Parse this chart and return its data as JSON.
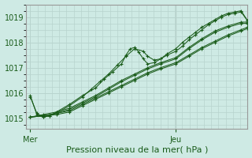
{
  "title": "Pression niveau de la mer( hPa )",
  "xlabel_ticks": [
    "Mer",
    "Jeu"
  ],
  "xlabel_tick_positions": [
    0.0,
    0.67
  ],
  "ylim": [
    1014.6,
    1019.5
  ],
  "yticks": [
    1015,
    1016,
    1017,
    1018,
    1019
  ],
  "xlim": [
    -0.02,
    1.0
  ],
  "bg_color": "#ceeae4",
  "grid_color": "#b8d4ce",
  "line_color": "#1a5c1a",
  "marker": "+",
  "vline_x": 0.67,
  "vline_color": "#888888",
  "series": [
    [
      0.0,
      1015.05,
      0.06,
      1015.1,
      0.12,
      1015.15,
      0.18,
      1015.25,
      0.24,
      1015.5,
      0.3,
      1015.75,
      0.36,
      1016.0,
      0.42,
      1016.25,
      0.48,
      1016.5,
      0.54,
      1016.75,
      0.6,
      1016.95,
      0.67,
      1017.15,
      0.73,
      1017.45,
      0.79,
      1017.75,
      0.85,
      1018.0,
      0.91,
      1018.25,
      0.97,
      1018.45,
      1.0,
      1018.55
    ],
    [
      0.0,
      1015.05,
      0.06,
      1015.1,
      0.12,
      1015.2,
      0.18,
      1015.3,
      0.24,
      1015.55,
      0.3,
      1015.8,
      0.36,
      1016.05,
      0.42,
      1016.3,
      0.48,
      1016.55,
      0.54,
      1016.8,
      0.6,
      1017.0,
      0.67,
      1017.2,
      0.73,
      1017.5,
      0.79,
      1017.8,
      0.85,
      1018.05,
      0.91,
      1018.3,
      0.97,
      1018.5,
      1.0,
      1018.6
    ],
    [
      0.0,
      1015.85,
      0.03,
      1015.2,
      0.06,
      1015.05,
      0.09,
      1015.1,
      0.12,
      1015.2,
      0.18,
      1015.5,
      0.24,
      1015.85,
      0.28,
      1016.15,
      0.32,
      1016.45,
      0.36,
      1016.75,
      0.4,
      1017.1,
      0.44,
      1017.45,
      0.48,
      1017.75,
      0.52,
      1017.65,
      0.54,
      1017.45,
      0.57,
      1017.3,
      0.6,
      1017.35,
      0.63,
      1017.5,
      0.67,
      1017.65,
      0.7,
      1017.85,
      0.73,
      1018.1,
      0.76,
      1018.3,
      0.79,
      1018.5,
      0.82,
      1018.7,
      0.85,
      1018.85,
      0.88,
      1019.0,
      0.91,
      1019.1,
      0.94,
      1019.15,
      0.97,
      1019.2,
      1.0,
      1018.85
    ],
    [
      0.0,
      1015.9,
      0.03,
      1015.15,
      0.06,
      1015.05,
      0.09,
      1015.1,
      0.12,
      1015.25,
      0.18,
      1015.55,
      0.24,
      1015.9,
      0.3,
      1016.2,
      0.34,
      1016.55,
      0.38,
      1016.85,
      0.42,
      1017.15,
      0.44,
      1017.5,
      0.46,
      1017.75,
      0.48,
      1017.8,
      0.5,
      1017.6,
      0.52,
      1017.35,
      0.54,
      1017.15,
      0.57,
      1017.2,
      0.6,
      1017.35,
      0.63,
      1017.55,
      0.67,
      1017.75,
      0.7,
      1018.0,
      0.73,
      1018.2,
      0.76,
      1018.4,
      0.79,
      1018.6,
      0.82,
      1018.75,
      0.85,
      1018.9,
      0.88,
      1019.05,
      0.91,
      1019.15,
      0.94,
      1019.2,
      0.97,
      1019.25,
      1.0,
      1018.85
    ],
    [
      0.0,
      1015.05,
      0.06,
      1015.1,
      0.12,
      1015.2,
      0.18,
      1015.35,
      0.24,
      1015.6,
      0.3,
      1015.85,
      0.36,
      1016.15,
      0.42,
      1016.45,
      0.48,
      1016.7,
      0.54,
      1016.95,
      0.6,
      1017.15,
      0.67,
      1017.35,
      0.73,
      1017.75,
      0.79,
      1018.1,
      0.85,
      1018.4,
      0.91,
      1018.6,
      0.97,
      1018.75,
      1.0,
      1018.75
    ],
    [
      0.0,
      1015.05,
      0.06,
      1015.15,
      0.12,
      1015.25,
      0.18,
      1015.4,
      0.24,
      1015.65,
      0.3,
      1015.9,
      0.36,
      1016.2,
      0.42,
      1016.5,
      0.48,
      1016.75,
      0.54,
      1017.0,
      0.6,
      1017.2,
      0.67,
      1017.4,
      0.73,
      1017.8,
      0.79,
      1018.15,
      0.85,
      1018.45,
      0.91,
      1018.65,
      0.97,
      1018.8,
      1.0,
      1018.8
    ]
  ]
}
